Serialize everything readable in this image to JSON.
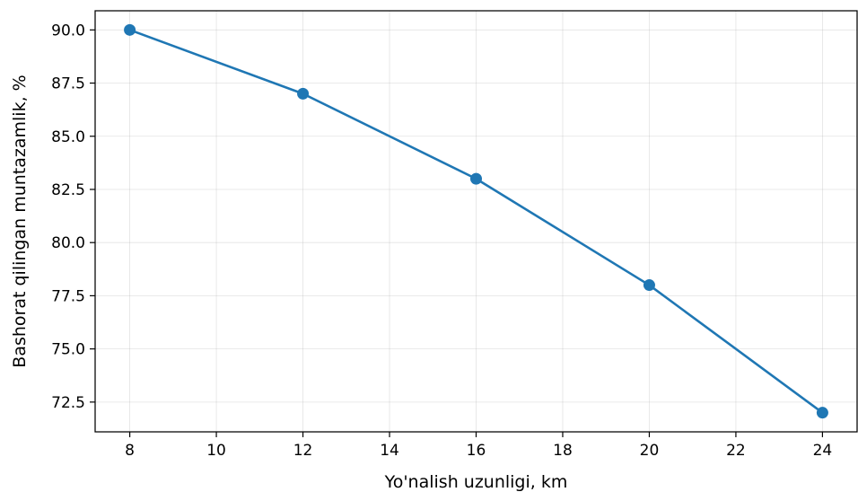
{
  "chart_data": {
    "type": "line",
    "title": "",
    "xlabel": "Yo'nalish uzunligi, km",
    "ylabel": "Bashorat qilingan muntazamlik, %",
    "x": [
      8,
      12,
      16,
      20,
      24
    ],
    "series": [
      {
        "values": [
          90.0,
          87.0,
          83.0,
          78.0,
          72.0
        ],
        "color": "#1f77b4",
        "marker": "circle"
      }
    ],
    "xlim": [
      7.2,
      24.8
    ],
    "ylim": [
      71.1,
      90.9
    ],
    "x_ticks": [
      8,
      10,
      12,
      14,
      16,
      18,
      20,
      22,
      24
    ],
    "x_tick_labels": [
      "8",
      "10",
      "12",
      "14",
      "16",
      "18",
      "20",
      "22",
      "24"
    ],
    "y_ticks": [
      72.5,
      75.0,
      77.5,
      80.0,
      82.5,
      85.0,
      87.5,
      90.0
    ],
    "y_tick_labels": [
      "72.5",
      "75.0",
      "77.5",
      "80.0",
      "82.5",
      "85.0",
      "87.5",
      "90.0"
    ],
    "grid": true,
    "legend": "none"
  }
}
